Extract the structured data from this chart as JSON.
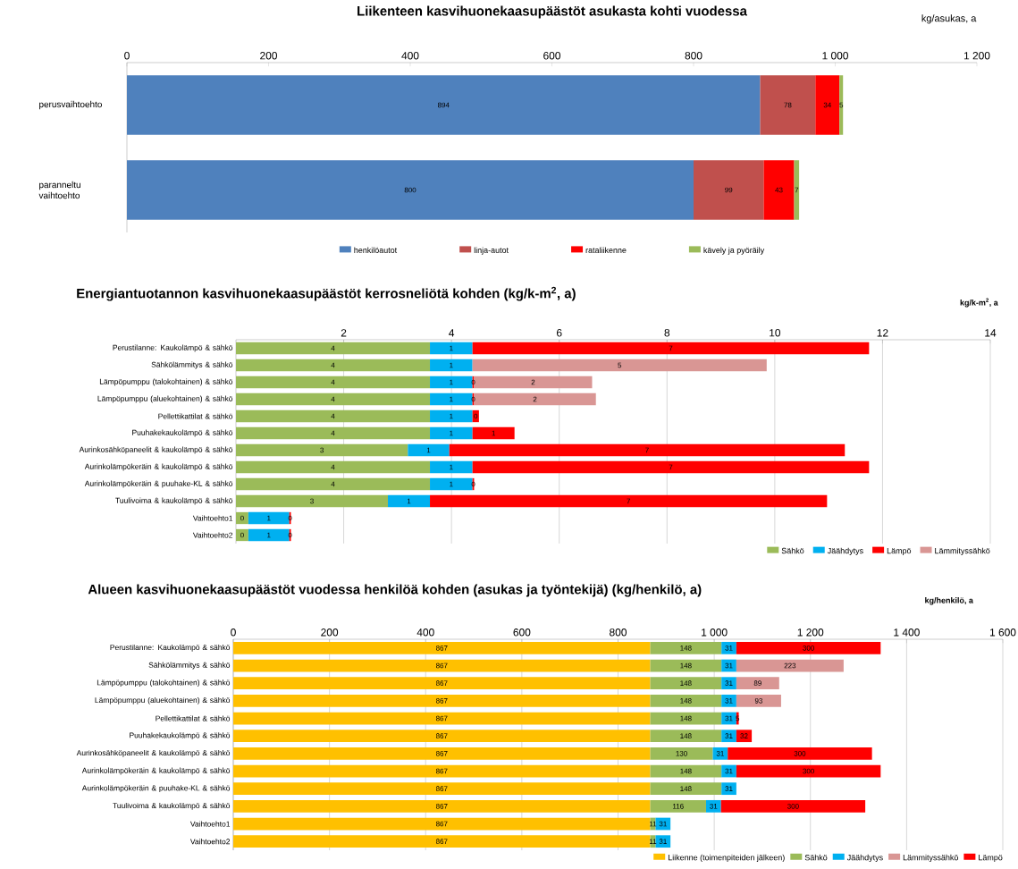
{
  "chart_data": [
    {
      "type": "bar",
      "orientation": "horizontal",
      "stacked": true,
      "title": "Liikenteen kasvihuonekaasupäästöt asukasta kohti vuodessa",
      "annotations": [
        "kg/asukas, a"
      ],
      "categories": [
        "perusvaihtoehto",
        "paranneltu vaihtoehto"
      ],
      "xlim": [
        0,
        1200
      ],
      "xticks": [
        0,
        200,
        400,
        600,
        800,
        {
          "value": 1000,
          "label": "1 000"
        },
        {
          "value": 1200,
          "label": "1 200"
        }
      ],
      "legend": "bottom",
      "data_labels": true,
      "series": [
        {
          "name": "henkilöautot",
          "color": "#4f81bd",
          "values": [
            894,
            800
          ]
        },
        {
          "name": "linja-autot",
          "color": "#c0504d",
          "values": [
            78,
            99
          ]
        },
        {
          "name": "rataliikenne",
          "color": "#ff0000",
          "values": [
            34,
            43
          ]
        },
        {
          "name": "kävely ja pyöräily",
          "color": "#9bbb59",
          "values": [
            5,
            7
          ]
        }
      ]
    },
    {
      "type": "bar",
      "orientation": "horizontal",
      "stacked": true,
      "title": "Energiantuotannon kasvihuonekaasupäästöt kerrosneliötä kohden (kg/k-m$^{2}$, a)",
      "annotations": [
        "kg/k-m$^{2}$, a"
      ],
      "categories": [
        "Perustilanne: Kaukolämpö & sähkö",
        "Sähkölämmitys & sähkö",
        "Lämpöpumppu (talokohtainen) & sähkö",
        "Lämpöpumppu (aluekohtainen) & sähkö",
        "Pellettikattilat & sähkö",
        "Puuhakekaukolämpö & sähkö",
        "Aurinkosähköpaneelit & kaukolämpö & sähkö",
        "Aurinkolämpökeräin & kaukolämpö & sähkö",
        "Aurinkolämpökeräin & puuhake-KL & sähkö",
        "Tuulivoima & kaukolämpö & sähkö",
        "Vaihtoehto1",
        "Vaihtoehto2"
      ],
      "xlim": [
        0,
        14
      ],
      "xticks": [
        2,
        4,
        6,
        8,
        10,
        12,
        14
      ],
      "legend": "bottom right",
      "grid": "x",
      "series": [
        {
          "name": "Sähkö",
          "color": "#9bbb59",
          "values": [
            3.6,
            3.6,
            3.6,
            3.6,
            3.6,
            3.6,
            3.19,
            3.6,
            3.6,
            2.82,
            0.23,
            0.23
          ],
          "value_labels": [
            "4",
            "4",
            "4",
            "4",
            "4",
            "4",
            "3",
            "4",
            "4",
            "3",
            "0",
            "0"
          ]
        },
        {
          "name": "Jäähdytys",
          "color": "#00b0f0",
          "values": [
            0.79,
            0.79,
            0.79,
            0.79,
            0.79,
            0.79,
            0.77,
            0.79,
            0.79,
            0.78,
            0.76,
            0.76
          ],
          "value_labels": [
            "1",
            "1",
            "1",
            "1",
            "1",
            "1",
            "1",
            "1",
            "1",
            "1",
            "1",
            "1"
          ]
        },
        {
          "name": "Lämpö",
          "color": "#ff0000",
          "values": [
            7.36,
            null,
            0.03,
            0.03,
            0.12,
            0.78,
            7.34,
            7.36,
            0.03,
            7.37,
            0.03,
            0.03
          ],
          "value_labels": [
            "7",
            null,
            "0",
            "0",
            "0",
            "1",
            "7",
            "7",
            "0",
            "7",
            "0",
            "0"
          ]
        },
        {
          "name": "Lämmityssähkö",
          "color": "#d99694",
          "values": [
            null,
            5.46,
            2.19,
            2.26,
            null,
            null,
            null,
            null,
            null,
            null,
            null,
            null
          ],
          "value_labels": [
            null,
            "5",
            "2",
            "2",
            null,
            null,
            null,
            null,
            null,
            null,
            null,
            null
          ]
        }
      ]
    },
    {
      "type": "bar",
      "orientation": "horizontal",
      "stacked": true,
      "title": "Alueen kasvihuonekaasupäästöt vuodessa henkilöä kohden (asukas ja työntekijä) (kg/henkilö, a)",
      "annotations": [
        "kg/henkilö, a"
      ],
      "categories": [
        "Perustilanne: Kaukolämpö & sähkö",
        "Sähkölämmitys & sähkö",
        "Lämpöpumppu (talokohtainen) & sähkö",
        "Lämpöpumppu (aluekohtainen) & sähkö",
        "Pellettikattilat & sähkö",
        "Puuhakekaukolämpö & sähkö",
        "Aurinkosähköpaneelit & kaukolämpö & sähkö",
        "Aurinkolämpökeräin & kaukolämpö & sähkö",
        "Aurinkolämpökeräin & puuhake-KL & sähkö",
        "Tuulivoima & kaukolämpö & sähkö",
        "Vaihtoehto1",
        "Vaihtoehto2"
      ],
      "xlim": [
        0,
        1600
      ],
      "xticks": [
        0,
        200,
        400,
        600,
        800,
        {
          "value": 1000,
          "label": "1 000"
        },
        {
          "value": 1200,
          "label": "1 200"
        },
        {
          "value": 1400,
          "label": "1 400"
        },
        {
          "value": 1600,
          "label": "1 600"
        }
      ],
      "legend": "bottom right",
      "grid": "x",
      "data_labels": true,
      "series": [
        {
          "name": "Liikenne (toimenpiteiden jälkeen)",
          "color": "#ffc000",
          "values": [
            867,
            867,
            867,
            867,
            867,
            867,
            867,
            867,
            867,
            867,
            867,
            867
          ]
        },
        {
          "name": "Sähkö",
          "color": "#9bbb59",
          "values": [
            148,
            148,
            148,
            148,
            148,
            148,
            130,
            148,
            148,
            116,
            11,
            11
          ]
        },
        {
          "name": "Jäähdytys",
          "color": "#00b0f0",
          "values": [
            31,
            31,
            31,
            31,
            31,
            31,
            31,
            31,
            31,
            31,
            31,
            31
          ]
        },
        {
          "name": "Lämmityssähkö",
          "color": "#d99694",
          "values": [
            null,
            223,
            89,
            93,
            null,
            null,
            null,
            null,
            null,
            null,
            null,
            null
          ]
        },
        {
          "name": "Lämpö",
          "color": "#ff0000",
          "values": [
            300,
            null,
            null,
            null,
            5,
            32,
            300,
            300,
            null,
            300,
            null,
            null
          ]
        }
      ]
    }
  ]
}
